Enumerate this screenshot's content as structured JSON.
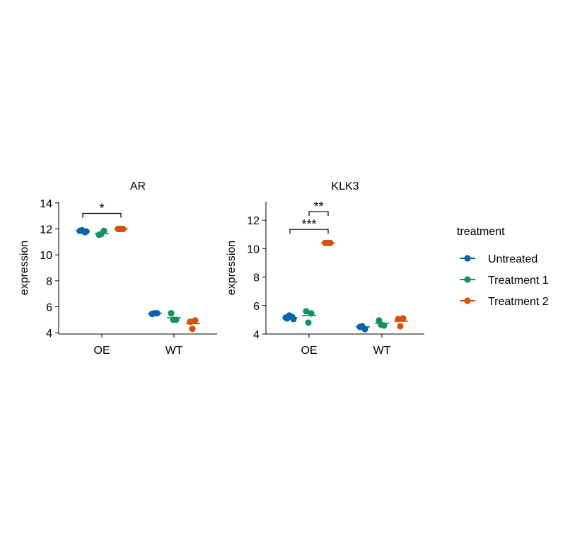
{
  "chart_data": {
    "type": "scatter",
    "ylabel": "expression",
    "categories": [
      "OE",
      "WT"
    ],
    "legend": {
      "title": "treatment",
      "position": "right",
      "entries": [
        "Untreated",
        "Treatment 1",
        "Treatment 2"
      ]
    },
    "colors": {
      "Untreated": "#0a62aa",
      "Treatment 1": "#13925e",
      "Treatment 2": "#d4510c"
    },
    "panels": [
      {
        "title": "AR",
        "ylim": [
          3.9,
          14.1
        ],
        "yticks": [
          4,
          6,
          8,
          10,
          12,
          14
        ],
        "tick_labels": [
          "4",
          "6",
          "8",
          "10",
          "12",
          "14"
        ],
        "points": {
          "OE": {
            "Untreated": [
              11.85,
              11.75,
              11.9,
              11.8
            ],
            "Treatment 1": [
              11.55,
              11.85,
              11.6
            ],
            "Treatment 2": [
              12.0,
              12.0,
              12.0
            ]
          },
          "WT": {
            "Untreated": [
              5.45,
              5.5,
              5.5
            ],
            "Treatment 1": [
              5.5,
              5.0,
              5.0
            ],
            "Treatment 2": [
              4.85,
              4.95,
              4.3
            ]
          }
        },
        "means": {
          "OE": {
            "Untreated": 11.85,
            "Treatment 1": 11.65,
            "Treatment 2": 12.0
          },
          "WT": {
            "Untreated": 5.5,
            "Treatment 1": 5.15,
            "Treatment 2": 4.7
          }
        },
        "brackets": [
          {
            "group": "OE",
            "from": "Untreated",
            "to": "Treatment 2",
            "y": 13.2,
            "label": "*"
          }
        ]
      },
      {
        "title": "KLK3",
        "ylim": [
          4.0,
          13.3
        ],
        "yticks": [
          4,
          6,
          8,
          10,
          12
        ],
        "tick_labels": [
          "4",
          "6",
          "8",
          "10",
          "12"
        ],
        "points": {
          "OE": {
            "Untreated": [
              5.1,
              5.2,
              5.3,
              5.05,
              5.15
            ],
            "Treatment 1": [
              5.6,
              5.45,
              4.8
            ],
            "Treatment 2": [
              10.4,
              10.4,
              10.4
            ]
          },
          "WT": {
            "Untreated": [
              4.5,
              4.35,
              4.55
            ],
            "Treatment 1": [
              4.95,
              4.6,
              4.65
            ],
            "Treatment 2": [
              5.05,
              5.1,
              4.55
            ]
          }
        },
        "means": {
          "OE": {
            "Untreated": 5.15,
            "Treatment 1": 5.3,
            "Treatment 2": 10.4
          },
          "WT": {
            "Untreated": 4.5,
            "Treatment 1": 4.75,
            "Treatment 2": 4.9
          }
        },
        "brackets": [
          {
            "group": "OE",
            "from": "Untreated",
            "to": "Treatment 2",
            "y": 11.35,
            "label": "***"
          },
          {
            "group": "OE",
            "from": "Treatment 1",
            "to": "Treatment 2",
            "y": 12.6,
            "label": "**"
          }
        ]
      }
    ]
  }
}
